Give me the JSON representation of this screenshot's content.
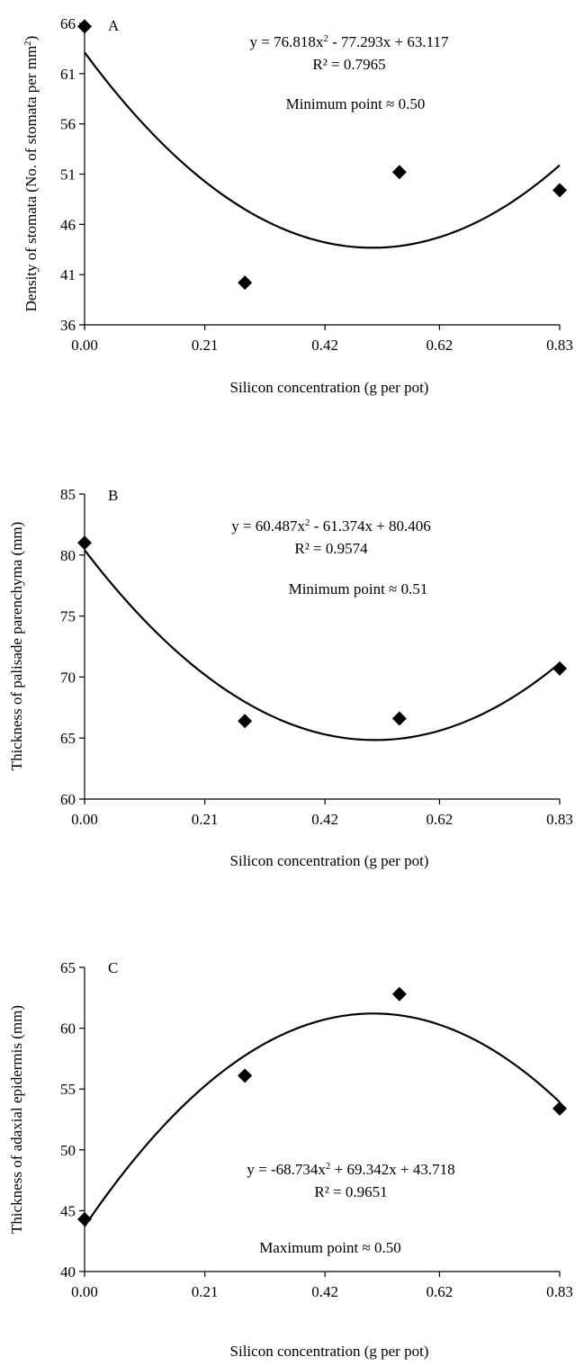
{
  "chart_data": [
    {
      "type": "scatter",
      "panel_label": "A",
      "xlabel": "Silicon concentration (g per pot)",
      "ylabel": "Density of stomata (No. of stomata per mm",
      "ylabel_superscript": "2",
      "ylabel_close": ")",
      "x_ticks": [
        "0.00",
        "0.21",
        "0.42",
        "0.62",
        "0.83"
      ],
      "x_tick_values": [
        0,
        0.21,
        0.42,
        0.62,
        0.83
      ],
      "xlim": [
        0,
        0.83
      ],
      "y_ticks": [
        "36",
        "41",
        "46",
        "51",
        "56",
        "61",
        "66"
      ],
      "y_tick_values": [
        36,
        41,
        46,
        51,
        56,
        61,
        66
      ],
      "ylim": [
        36,
        66
      ],
      "points": [
        {
          "x": 0.0,
          "y": 65.7
        },
        {
          "x": 0.28,
          "y": 40.2
        },
        {
          "x": 0.55,
          "y": 51.2
        },
        {
          "x": 0.83,
          "y": 49.4
        }
      ],
      "trendline": {
        "type": "poly2",
        "a": 76.818,
        "b": -77.293,
        "c": 63.117
      },
      "equation": "y = 76.818x",
      "equation_sup": "2",
      "equation_rest": " - 77.293x + 63.117",
      "r2": "R² = 0.7965",
      "note": "Minimum point ≈ 0.50"
    },
    {
      "type": "scatter",
      "panel_label": "B",
      "xlabel": "Silicon concentration (g per pot)",
      "ylabel": "Thickness of palisade parenchyma (mm)",
      "ylabel_superscript": "",
      "ylabel_close": "",
      "x_ticks": [
        "0.00",
        "0.21",
        "0.42",
        "0.62",
        "0.83"
      ],
      "x_tick_values": [
        0,
        0.21,
        0.42,
        0.62,
        0.83
      ],
      "xlim": [
        0,
        0.83
      ],
      "y_ticks": [
        "60",
        "65",
        "70",
        "75",
        "80",
        "85"
      ],
      "y_tick_values": [
        60,
        65,
        70,
        75,
        80,
        85
      ],
      "ylim": [
        60,
        85
      ],
      "points": [
        {
          "x": 0.0,
          "y": 81.0
        },
        {
          "x": 0.28,
          "y": 66.4
        },
        {
          "x": 0.55,
          "y": 66.6
        },
        {
          "x": 0.83,
          "y": 70.7
        }
      ],
      "trendline": {
        "type": "poly2",
        "a": 60.487,
        "b": -61.374,
        "c": 80.406
      },
      "equation": "y = 60.487x",
      "equation_sup": "2",
      "equation_rest": " - 61.374x + 80.406",
      "r2": "R² = 0.9574",
      "note": "Minimum point ≈ 0.51"
    },
    {
      "type": "scatter",
      "panel_label": "C",
      "xlabel": "Silicon concentration (g per pot)",
      "ylabel": "Thickness of adaxial epidermis (mm)",
      "ylabel_superscript": "",
      "ylabel_close": "",
      "x_ticks": [
        "0.00",
        "0.21",
        "0.42",
        "0.62",
        "0.83"
      ],
      "x_tick_values": [
        0,
        0.21,
        0.42,
        0.62,
        0.83
      ],
      "xlim": [
        0,
        0.83
      ],
      "y_ticks": [
        "40",
        "45",
        "50",
        "55",
        "60",
        "65"
      ],
      "y_tick_values": [
        40,
        45,
        50,
        55,
        60,
        65
      ],
      "ylim": [
        40,
        65
      ],
      "points": [
        {
          "x": 0.0,
          "y": 44.3
        },
        {
          "x": 0.28,
          "y": 56.1
        },
        {
          "x": 0.55,
          "y": 62.8
        },
        {
          "x": 0.83,
          "y": 53.4
        }
      ],
      "trendline": {
        "type": "poly2",
        "a": -68.734,
        "b": 69.342,
        "c": 43.718
      },
      "equation": "y = -68.734x",
      "equation_sup": "2",
      "equation_rest": " + 69.342x + 43.718",
      "r2": "R² = 0.9651",
      "note": "Maximum point ≈ 0.50"
    }
  ]
}
